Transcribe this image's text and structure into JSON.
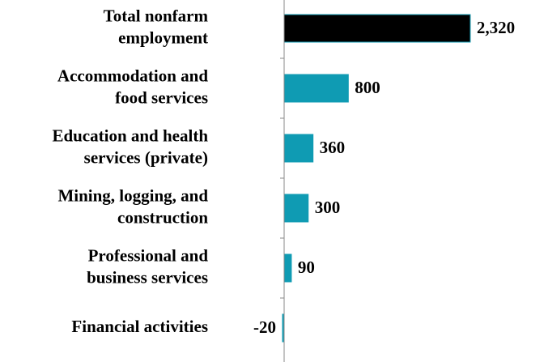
{
  "chart_data": {
    "type": "bar",
    "orientation": "horizontal",
    "categories": [
      [
        "Total nonfarm",
        "employment"
      ],
      [
        "Accommodation and",
        "food services"
      ],
      [
        "Education and health",
        "services (private)"
      ],
      [
        "Mining, logging, and",
        "construction"
      ],
      [
        "Professional and",
        "business services"
      ],
      [
        "Financial activities"
      ]
    ],
    "values": [
      2320,
      800,
      360,
      300,
      90,
      -20
    ],
    "value_labels": [
      "2,320",
      "800",
      "360",
      "300",
      "90",
      "-20"
    ],
    "colors": [
      "#000000",
      "#0f9bb3",
      "#0f9bb3",
      "#0f9bb3",
      "#0f9bb3",
      "#0f9bb3"
    ]
  }
}
